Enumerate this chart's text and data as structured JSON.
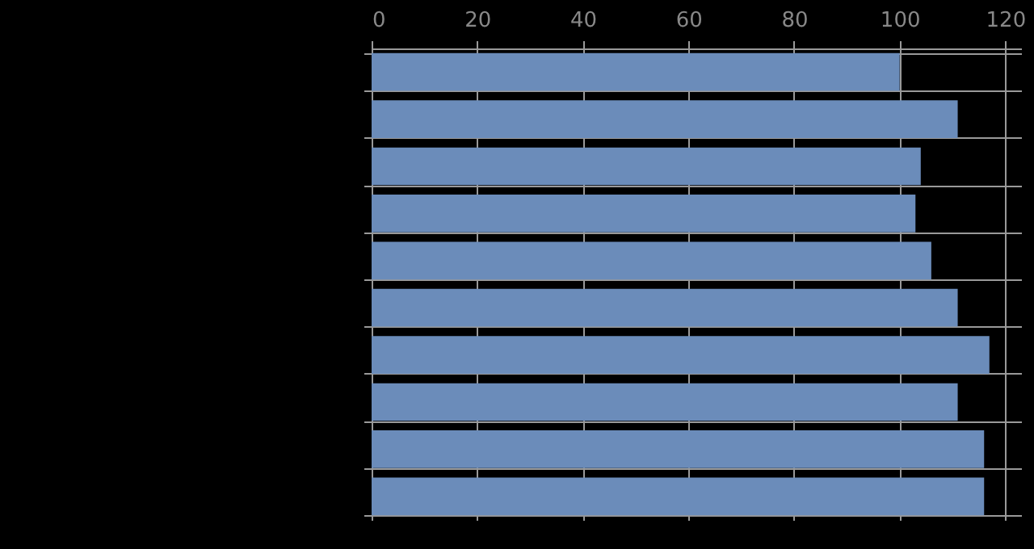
{
  "chart_data": {
    "type": "bar",
    "orientation": "horizontal",
    "categories": [
      null,
      null,
      null,
      null,
      null,
      null,
      null,
      null,
      null,
      null
    ],
    "values": [
      100,
      111,
      104,
      103,
      106,
      111,
      117,
      111,
      116,
      116
    ],
    "color": "#6b8cba",
    "xlim": [
      0,
      123
    ],
    "xticks": [
      0,
      20,
      40,
      60,
      80,
      100,
      120
    ],
    "grid": true,
    "tick_labels": "x"
  }
}
